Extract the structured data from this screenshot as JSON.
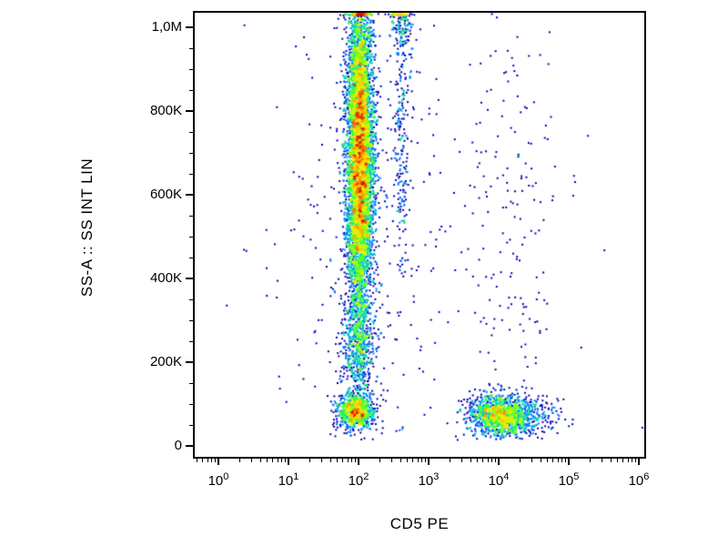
{
  "chart_data": {
    "type": "scatter",
    "subtype": "flow-cytometry-pseudocolor-density",
    "title": "",
    "xlabel": "CD5 PE",
    "ylabel": "SS-A :: SS INT LIN",
    "x_scale": "log10",
    "x_range_decades": [
      0,
      6
    ],
    "x_ticks": [
      {
        "base": "10",
        "exp": "0",
        "log_value": 0
      },
      {
        "base": "10",
        "exp": "1",
        "log_value": 1
      },
      {
        "base": "10",
        "exp": "2",
        "log_value": 2
      },
      {
        "base": "10",
        "exp": "3",
        "log_value": 3
      },
      {
        "base": "10",
        "exp": "4",
        "log_value": 4
      },
      {
        "base": "10",
        "exp": "5",
        "log_value": 5
      },
      {
        "base": "10",
        "exp": "6",
        "log_value": 6
      }
    ],
    "y_scale": "linear",
    "y_range": [
      0,
      1050000
    ],
    "y_ticks": [
      {
        "value": 1000000,
        "label": "1,0M"
      },
      {
        "value": 800000,
        "label": "800K"
      },
      {
        "value": 600000,
        "label": "600K"
      },
      {
        "value": 400000,
        "label": "400K"
      },
      {
        "value": 200000,
        "label": "200K"
      },
      {
        "value": 0,
        "label": "0"
      }
    ],
    "y_minor_tick_step": 50000,
    "grid": false,
    "legend": false,
    "density_stops": [
      {
        "t": 0.0,
        "color": "#0000b4"
      },
      {
        "t": 0.15,
        "color": "#0046ff"
      },
      {
        "t": 0.3,
        "color": "#00a0ff"
      },
      {
        "t": 0.45,
        "color": "#00dca0"
      },
      {
        "t": 0.58,
        "color": "#3cff3c"
      },
      {
        "t": 0.7,
        "color": "#b4ff00"
      },
      {
        "t": 0.8,
        "color": "#ffe600"
      },
      {
        "t": 0.9,
        "color": "#ff8c00"
      },
      {
        "t": 1.0,
        "color": "#dc1400"
      }
    ],
    "populations": [
      {
        "name": "cd5-negative-column",
        "n": 6500,
        "x_log_mean": 2.02,
        "x_log_sd": 0.095,
        "y_mean": 690000,
        "y_sd": 205000,
        "y_min": 140000,
        "y_max": 1072000
      },
      {
        "name": "column-lower-tail",
        "n": 450,
        "x_log_mean": 2.0,
        "x_log_sd": 0.12,
        "y_mean": 220000,
        "y_sd": 70000,
        "y_min": 95000,
        "y_max": 380000
      },
      {
        "name": "cd5-negative-low-ssc",
        "n": 850,
        "x_log_mean": 1.96,
        "x_log_sd": 0.13,
        "y_mean": 82000,
        "y_sd": 20000,
        "y_min": 12000,
        "y_max": 160000
      },
      {
        "name": "cd5-positive-lymphocytes",
        "n": 1250,
        "x_log_mean": 4.02,
        "x_log_sd": 0.22,
        "y_mean": 72000,
        "y_sd": 25000,
        "y_min": 12000,
        "y_max": 185000
      },
      {
        "name": "cd5-positive-right-tail",
        "n": 170,
        "x_log_mean": 4.5,
        "x_log_sd": 0.2,
        "y_mean": 75000,
        "y_sd": 27000,
        "y_min": 12000,
        "y_max": 185000
      },
      {
        "name": "mid-debris-stream",
        "n": 230,
        "x_log_mean": 2.62,
        "x_log_sd": 0.065,
        "y_mean": 760000,
        "y_sd": 240000,
        "y_min": 400000,
        "y_max": 1072000
      },
      {
        "name": "top-edge-clump",
        "n": 140,
        "x_log_mean": 2.61,
        "x_log_sd": 0.08,
        "y_mean": 1030000,
        "y_sd": 45000,
        "y_min": 920000,
        "y_max": 1072000
      },
      {
        "name": "sparse-left-scatter",
        "n": 280,
        "x_log_mean": 2.05,
        "x_log_sd": 0.5,
        "y_mean": 420000,
        "y_sd": 330000,
        "y_min": 12000,
        "y_max": 1072000
      },
      {
        "name": "sparse-right-upper",
        "n": 150,
        "x_log_mean": 4.2,
        "x_log_sd": 0.35,
        "y_mean": 620000,
        "y_sd": 300000,
        "y_min": 100000,
        "y_max": 1072000
      },
      {
        "name": "background-scatter",
        "n": 90,
        "x_log_mean": 3.0,
        "x_log_sd": 1.1,
        "y_mean": 500000,
        "y_sd": 400000,
        "y_min": 8000,
        "y_max": 1072000
      }
    ]
  }
}
